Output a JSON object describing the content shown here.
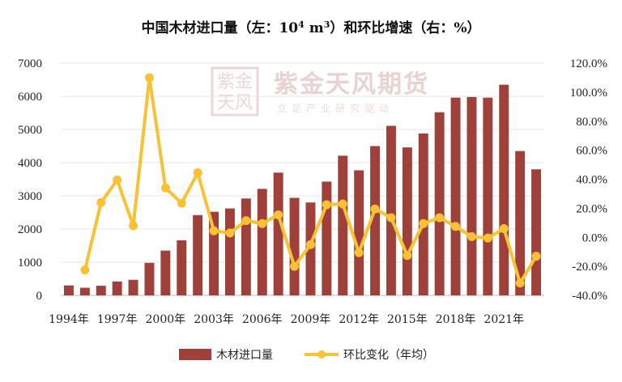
{
  "chart_data": {
    "type": "bar",
    "title": "中国木材进口量（左：10⁴ m³）和环比增速（右：%）",
    "title_parts": {
      "main": "中国木材进口量（左：10",
      "sup": "4",
      "unit": " m",
      "unit_sup": "3",
      "tail": "）和环比增速（右：%）"
    },
    "categories": [
      "1994年",
      "1995年",
      "1996年",
      "1997年",
      "1998年",
      "1999年",
      "2000年",
      "2001年",
      "2002年",
      "2003年",
      "2004年",
      "2005年",
      "2006年",
      "2007年",
      "2008年",
      "2009年",
      "2010年",
      "2011年",
      "2012年",
      "2013年",
      "2014年",
      "2015年",
      "2016年",
      "2017年",
      "2018年",
      "2019年",
      "2020年",
      "2021年",
      "2022年",
      "2023年"
    ],
    "x_tick_labels": [
      "1994年",
      "1997年",
      "2000年",
      "2003年",
      "2006年",
      "2009年",
      "2012年",
      "2015年",
      "2018年",
      "2021年"
    ],
    "x_tick_indices": [
      0,
      3,
      6,
      9,
      12,
      15,
      18,
      21,
      24,
      27
    ],
    "series": [
      {
        "name": "木材进口量",
        "type": "bar",
        "axis": "left",
        "color": "#a0403a",
        "values": [
          300,
          230,
          290,
          420,
          470,
          980,
          1350,
          1660,
          2420,
          2520,
          2620,
          2920,
          3210,
          3700,
          2940,
          2800,
          3430,
          4210,
          3770,
          4500,
          5110,
          4460,
          4880,
          5520,
          5960,
          5980,
          5960,
          6350,
          4350,
          3800
        ]
      },
      {
        "name": "环比变化（年均）",
        "type": "line",
        "axis": "right",
        "color": "#f8c234",
        "values": [
          null,
          -22.5,
          24.0,
          39.5,
          8.0,
          110.0,
          34.0,
          23.5,
          44.5,
          4.5,
          3.0,
          11.5,
          9.5,
          15.5,
          -20.0,
          -5.0,
          22.5,
          23.0,
          -10.5,
          19.5,
          13.5,
          -12.5,
          9.5,
          13.5,
          7.5,
          0.5,
          -0.5,
          6.0,
          -31.5,
          -13.0
        ]
      }
    ],
    "ylim_left": [
      0,
      7000
    ],
    "ylim_right": [
      -40,
      120
    ],
    "yticks_left": [
      "0",
      "1000",
      "2000",
      "3000",
      "4000",
      "5000",
      "6000",
      "7000"
    ],
    "yticks_right": [
      "-40.0%",
      "-20.0%",
      "0.0%",
      "20.0%",
      "40.0%",
      "60.0%",
      "80.0%",
      "100.0%",
      "120.0%"
    ],
    "grid": true,
    "legend": "bottom",
    "watermark": {
      "brand": "紫金天风期货",
      "slogan": "立足产业研究驱动",
      "seal": "紫金天风"
    }
  }
}
